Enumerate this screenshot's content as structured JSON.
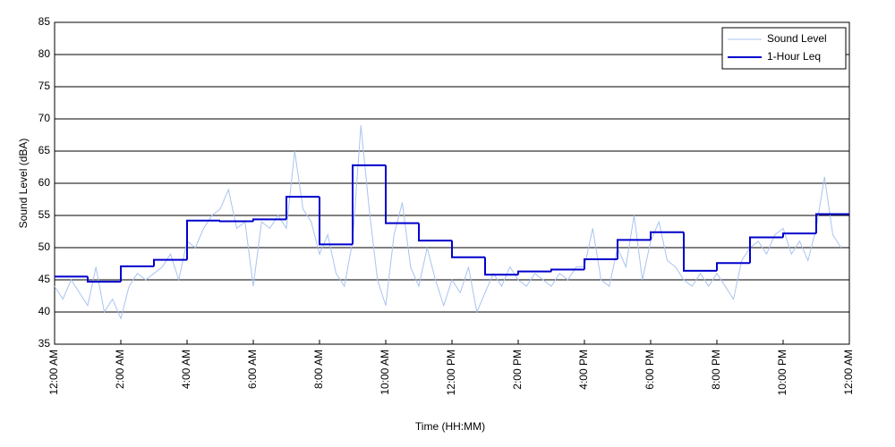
{
  "chart_data": {
    "type": "line",
    "xlabel": "Time (HH:MM)",
    "ylabel": "Sound Level (dBA)",
    "xlim": [
      0,
      24
    ],
    "ylim": [
      35,
      85
    ],
    "yticks": [
      35,
      40,
      45,
      50,
      55,
      60,
      65,
      70,
      75,
      80,
      85
    ],
    "xticks": [
      {
        "value": 0,
        "label": "12:00 AM"
      },
      {
        "value": 2,
        "label": "2:00 AM"
      },
      {
        "value": 4,
        "label": "4:00 AM"
      },
      {
        "value": 6,
        "label": "6:00 AM"
      },
      {
        "value": 8,
        "label": "8:00 AM"
      },
      {
        "value": 10,
        "label": "10:00 AM"
      },
      {
        "value": 12,
        "label": "12:00 PM"
      },
      {
        "value": 14,
        "label": "2:00 PM"
      },
      {
        "value": 16,
        "label": "4:00 PM"
      },
      {
        "value": 18,
        "label": "6:00 PM"
      },
      {
        "value": 20,
        "label": "8:00 PM"
      },
      {
        "value": 22,
        "label": "10:00 PM"
      },
      {
        "value": 24,
        "label": "12:00 AM"
      }
    ],
    "grid": true,
    "legend": "upper right",
    "series": [
      {
        "name": "Sound Level",
        "color": "#a9c3f0",
        "style": "line",
        "x": [
          0,
          0.25,
          0.5,
          0.75,
          1,
          1.25,
          1.5,
          1.75,
          2,
          2.25,
          2.5,
          2.75,
          3,
          3.25,
          3.5,
          3.75,
          4,
          4.25,
          4.5,
          4.75,
          5,
          5.25,
          5.5,
          5.75,
          6,
          6.25,
          6.5,
          6.75,
          7,
          7.25,
          7.5,
          7.75,
          8,
          8.25,
          8.5,
          8.75,
          9,
          9.25,
          9.5,
          9.75,
          10,
          10.25,
          10.5,
          10.75,
          11,
          11.25,
          11.5,
          11.75,
          12,
          12.25,
          12.5,
          12.75,
          13,
          13.25,
          13.5,
          13.75,
          14,
          14.25,
          14.5,
          14.75,
          15,
          15.25,
          15.5,
          15.75,
          16,
          16.25,
          16.5,
          16.75,
          17,
          17.25,
          17.5,
          17.75,
          18,
          18.25,
          18.5,
          18.75,
          19,
          19.25,
          19.5,
          19.75,
          20,
          20.25,
          20.5,
          20.75,
          21,
          21.25,
          21.5,
          21.75,
          22,
          22.25,
          22.5,
          22.75,
          23,
          23.25,
          23.5,
          23.75
        ],
        "values": [
          44,
          42,
          45,
          43,
          41,
          47,
          40,
          42,
          39,
          44,
          46,
          45,
          46,
          47,
          49,
          45,
          51,
          50,
          53,
          55,
          56,
          59,
          53,
          54,
          44,
          54,
          53,
          55,
          53,
          65,
          56,
          54,
          49,
          52,
          46,
          44,
          51,
          69,
          56,
          45,
          41,
          52,
          57,
          47,
          44,
          50,
          45,
          41,
          45,
          43,
          47,
          40,
          43,
          46,
          44,
          47,
          45,
          44,
          46,
          45,
          44,
          46,
          45,
          47,
          47,
          53,
          45,
          44,
          50,
          47,
          55,
          45,
          51,
          54,
          48,
          47,
          45,
          44,
          46,
          44,
          46,
          44,
          42,
          48,
          50,
          51,
          49,
          52,
          53,
          49,
          51,
          48,
          53,
          61,
          52,
          50
        ]
      },
      {
        "name": "1-Hour Leq",
        "color": "#0000cc",
        "style": "step",
        "x": [
          0,
          1,
          2,
          3,
          4,
          5,
          6,
          7,
          8,
          9,
          10,
          11,
          12,
          13,
          14,
          15,
          16,
          17,
          18,
          19,
          20,
          21,
          22,
          23
        ],
        "values": [
          45.5,
          44.7,
          47.1,
          48.1,
          54.2,
          54.1,
          54.4,
          57.9,
          50.5,
          62.8,
          53.8,
          51.1,
          48.5,
          45.8,
          46.3,
          46.6,
          48.2,
          51.2,
          52.4,
          46.4,
          47.6,
          51.6,
          52.2,
          55.2
        ]
      }
    ]
  }
}
